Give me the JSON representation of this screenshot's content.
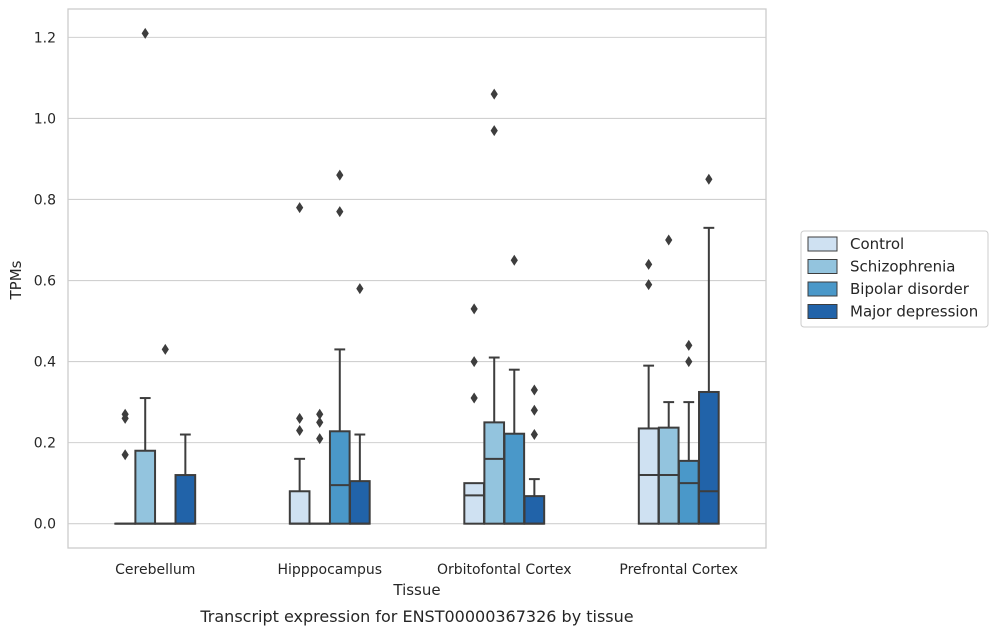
{
  "caption": "Transcript expression for ENST00000367326 by tissue",
  "colors": {
    "Control": "#cfe1f2",
    "Schizophrenia": "#93c4de",
    "Bipolar disorder": "#4a98c9",
    "Major depression": "#2163a9",
    "edge": "#3d3d3d",
    "grid": "#d0d0d0"
  },
  "chart_data": {
    "type": "box",
    "xlabel": "Tissue",
    "ylabel": "TPMs",
    "ylim": [
      -0.06,
      1.27
    ],
    "yticks": [
      0.0,
      0.2,
      0.4,
      0.6,
      0.8,
      1.0,
      1.2
    ],
    "ytick_labels": [
      "0.0",
      "0.2",
      "0.4",
      "0.6",
      "0.8",
      "1.0",
      "1.2"
    ],
    "categories": [
      "Cerebellum",
      "Hipppocampus",
      "Orbitofontal Cortex",
      "Prefrontal Cortex"
    ],
    "grid": "horizontal",
    "legend_position": "right",
    "series": [
      {
        "name": "Control",
        "boxes": [
          {
            "q1": 0.0,
            "median": 0.0,
            "q3": 0.0,
            "whisker_low": 0.0,
            "whisker_high": 0.0,
            "outliers": [
              0.27,
              0.26,
              0.17
            ]
          },
          {
            "q1": 0.0,
            "median": 0.0,
            "q3": 0.08,
            "whisker_low": 0.0,
            "whisker_high": 0.16,
            "outliers": [
              0.78,
              0.26,
              0.23
            ]
          },
          {
            "q1": 0.0,
            "median": 0.07,
            "q3": 0.1,
            "whisker_low": 0.0,
            "whisker_high": 0.1,
            "outliers": [
              0.53,
              0.4,
              0.31
            ]
          },
          {
            "q1": 0.0,
            "median": 0.12,
            "q3": 0.235,
            "whisker_low": 0.0,
            "whisker_high": 0.39,
            "outliers": [
              0.64,
              0.59
            ]
          }
        ]
      },
      {
        "name": "Schizophrenia",
        "boxes": [
          {
            "q1": 0.0,
            "median": 0.0,
            "q3": 0.18,
            "whisker_low": 0.0,
            "whisker_high": 0.31,
            "outliers": [
              1.21
            ]
          },
          {
            "q1": 0.0,
            "median": 0.0,
            "q3": 0.0,
            "whisker_low": 0.0,
            "whisker_high": 0.0,
            "outliers": [
              0.27,
              0.25,
              0.21
            ]
          },
          {
            "q1": 0.0,
            "median": 0.16,
            "q3": 0.25,
            "whisker_low": 0.0,
            "whisker_high": 0.41,
            "outliers": [
              1.06,
              0.97
            ]
          },
          {
            "q1": 0.0,
            "median": 0.12,
            "q3": 0.237,
            "whisker_low": 0.0,
            "whisker_high": 0.3,
            "outliers": [
              0.7
            ]
          }
        ]
      },
      {
        "name": "Bipolar disorder",
        "boxes": [
          {
            "q1": 0.0,
            "median": 0.0,
            "q3": 0.0,
            "whisker_low": 0.0,
            "whisker_high": 0.0,
            "outliers": [
              0.43
            ]
          },
          {
            "q1": 0.0,
            "median": 0.095,
            "q3": 0.228,
            "whisker_low": 0.0,
            "whisker_high": 0.43,
            "outliers": [
              0.86,
              0.77
            ]
          },
          {
            "q1": 0.0,
            "median": 0.0,
            "q3": 0.222,
            "whisker_low": 0.0,
            "whisker_high": 0.38,
            "outliers": [
              0.65
            ]
          },
          {
            "q1": 0.0,
            "median": 0.1,
            "q3": 0.155,
            "whisker_low": 0.0,
            "whisker_high": 0.3,
            "outliers": [
              0.44,
              0.4
            ]
          }
        ]
      },
      {
        "name": "Major depression",
        "boxes": [
          {
            "q1": 0.0,
            "median": 0.0,
            "q3": 0.12,
            "whisker_low": 0.0,
            "whisker_high": 0.22,
            "outliers": []
          },
          {
            "q1": 0.0,
            "median": 0.0,
            "q3": 0.105,
            "whisker_low": 0.0,
            "whisker_high": 0.22,
            "outliers": [
              0.58
            ]
          },
          {
            "q1": 0.0,
            "median": 0.0,
            "q3": 0.068,
            "whisker_low": 0.0,
            "whisker_high": 0.11,
            "outliers": [
              0.33,
              0.28,
              0.22
            ]
          },
          {
            "q1": 0.0,
            "median": 0.08,
            "q3": 0.325,
            "whisker_low": 0.0,
            "whisker_high": 0.73,
            "outliers": [
              0.85
            ]
          }
        ]
      }
    ]
  }
}
